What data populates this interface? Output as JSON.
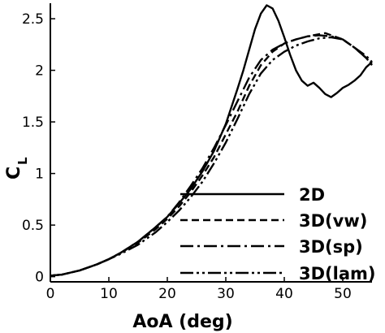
{
  "chart_data": {
    "type": "line",
    "xlabel": "AoA (deg)",
    "ylabel_main": "C",
    "ylabel_sub": "L",
    "xlim": [
      0,
      55
    ],
    "ylim": [
      -0.05,
      2.65
    ],
    "xticks": [
      0,
      10,
      20,
      30,
      40,
      50
    ],
    "yticks": [
      0,
      0.5,
      1,
      1.5,
      2,
      2.5
    ],
    "xtick_labels": [
      "0",
      "10",
      "20",
      "30",
      "40",
      "50"
    ],
    "ytick_labels": [
      "0",
      "0.5",
      "1",
      "1.5",
      "2",
      "2.5"
    ],
    "grid": false,
    "legend": "bottom-right",
    "series": [
      {
        "name": "2D",
        "dash": "solid",
        "x": [
          0,
          2,
          5,
          8,
          10,
          12,
          15,
          18,
          20,
          22,
          24,
          26,
          28,
          30,
          32,
          33,
          34,
          35,
          36,
          37,
          38,
          39,
          40,
          41,
          42,
          43,
          44,
          45,
          46,
          47,
          48,
          49,
          50,
          51,
          52,
          53,
          54,
          55
        ],
        "y": [
          0.01,
          0.02,
          0.06,
          0.12,
          0.17,
          0.23,
          0.34,
          0.48,
          0.58,
          0.71,
          0.85,
          1.02,
          1.22,
          1.48,
          1.82,
          2.0,
          2.2,
          2.4,
          2.55,
          2.63,
          2.6,
          2.48,
          2.32,
          2.15,
          2.0,
          1.9,
          1.85,
          1.88,
          1.83,
          1.77,
          1.74,
          1.78,
          1.83,
          1.86,
          1.9,
          1.95,
          2.03,
          2.08
        ]
      },
      {
        "name": "3D(vw)",
        "dash": "dashed",
        "x": [
          0,
          2,
          5,
          8,
          10,
          12,
          15,
          18,
          20,
          22,
          24,
          26,
          28,
          30,
          32,
          34,
          36,
          38,
          40,
          42,
          44,
          46,
          47,
          48,
          50,
          52,
          54,
          55
        ],
        "y": [
          0.01,
          0.02,
          0.06,
          0.12,
          0.17,
          0.23,
          0.33,
          0.46,
          0.56,
          0.68,
          0.82,
          0.98,
          1.16,
          1.38,
          1.6,
          1.85,
          2.05,
          2.18,
          2.26,
          2.3,
          2.33,
          2.35,
          2.36,
          2.34,
          2.3,
          2.22,
          2.12,
          2.05
        ]
      },
      {
        "name": "3D(sp)",
        "dash": "dashdot",
        "x": [
          0,
          2,
          5,
          8,
          10,
          12,
          15,
          18,
          20,
          22,
          24,
          26,
          28,
          30,
          32,
          34,
          36,
          38,
          40,
          42,
          44,
          46,
          48,
          50,
          52,
          54,
          55
        ],
        "y": [
          0.01,
          0.02,
          0.06,
          0.12,
          0.17,
          0.23,
          0.34,
          0.48,
          0.58,
          0.72,
          0.88,
          1.05,
          1.25,
          1.47,
          1.7,
          1.93,
          2.1,
          2.2,
          2.26,
          2.3,
          2.33,
          2.34,
          2.33,
          2.3,
          2.22,
          2.12,
          2.06
        ]
      },
      {
        "name": "3D(lam)",
        "dash": "dashdotdot",
        "x": [
          0,
          2,
          5,
          8,
          10,
          12,
          15,
          18,
          20,
          22,
          24,
          26,
          28,
          30,
          32,
          34,
          36,
          38,
          40,
          42,
          44,
          46,
          48,
          50,
          52,
          54,
          55
        ],
        "y": [
          0.01,
          0.02,
          0.06,
          0.12,
          0.17,
          0.22,
          0.31,
          0.43,
          0.53,
          0.64,
          0.77,
          0.92,
          1.1,
          1.3,
          1.53,
          1.77,
          1.97,
          2.1,
          2.18,
          2.24,
          2.28,
          2.31,
          2.32,
          2.3,
          2.22,
          2.14,
          2.08
        ]
      }
    ]
  }
}
